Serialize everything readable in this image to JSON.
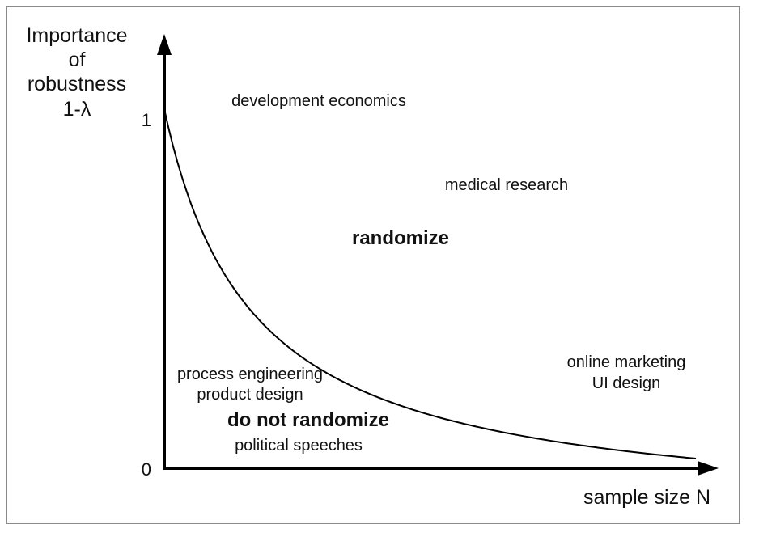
{
  "y_axis": {
    "title_lines": [
      "Importance",
      "of",
      "robustness",
      "1-λ"
    ],
    "tick_top": "1",
    "tick_bottom": "0"
  },
  "x_axis": {
    "title": "sample size N"
  },
  "labels": {
    "development_economics": "development economics",
    "medical_research": "medical research",
    "randomize": "randomize",
    "online_marketing": "online marketing",
    "ui_design": "UI design",
    "process_engineering": "process engineering",
    "product_design": "product design",
    "do_not_randomize": "do not randomize",
    "political_speeches": "political speeches"
  },
  "colors": {
    "axis": "#000000",
    "curve": "#000000",
    "region_label": "#1a1ab0",
    "text": "#111111"
  }
}
